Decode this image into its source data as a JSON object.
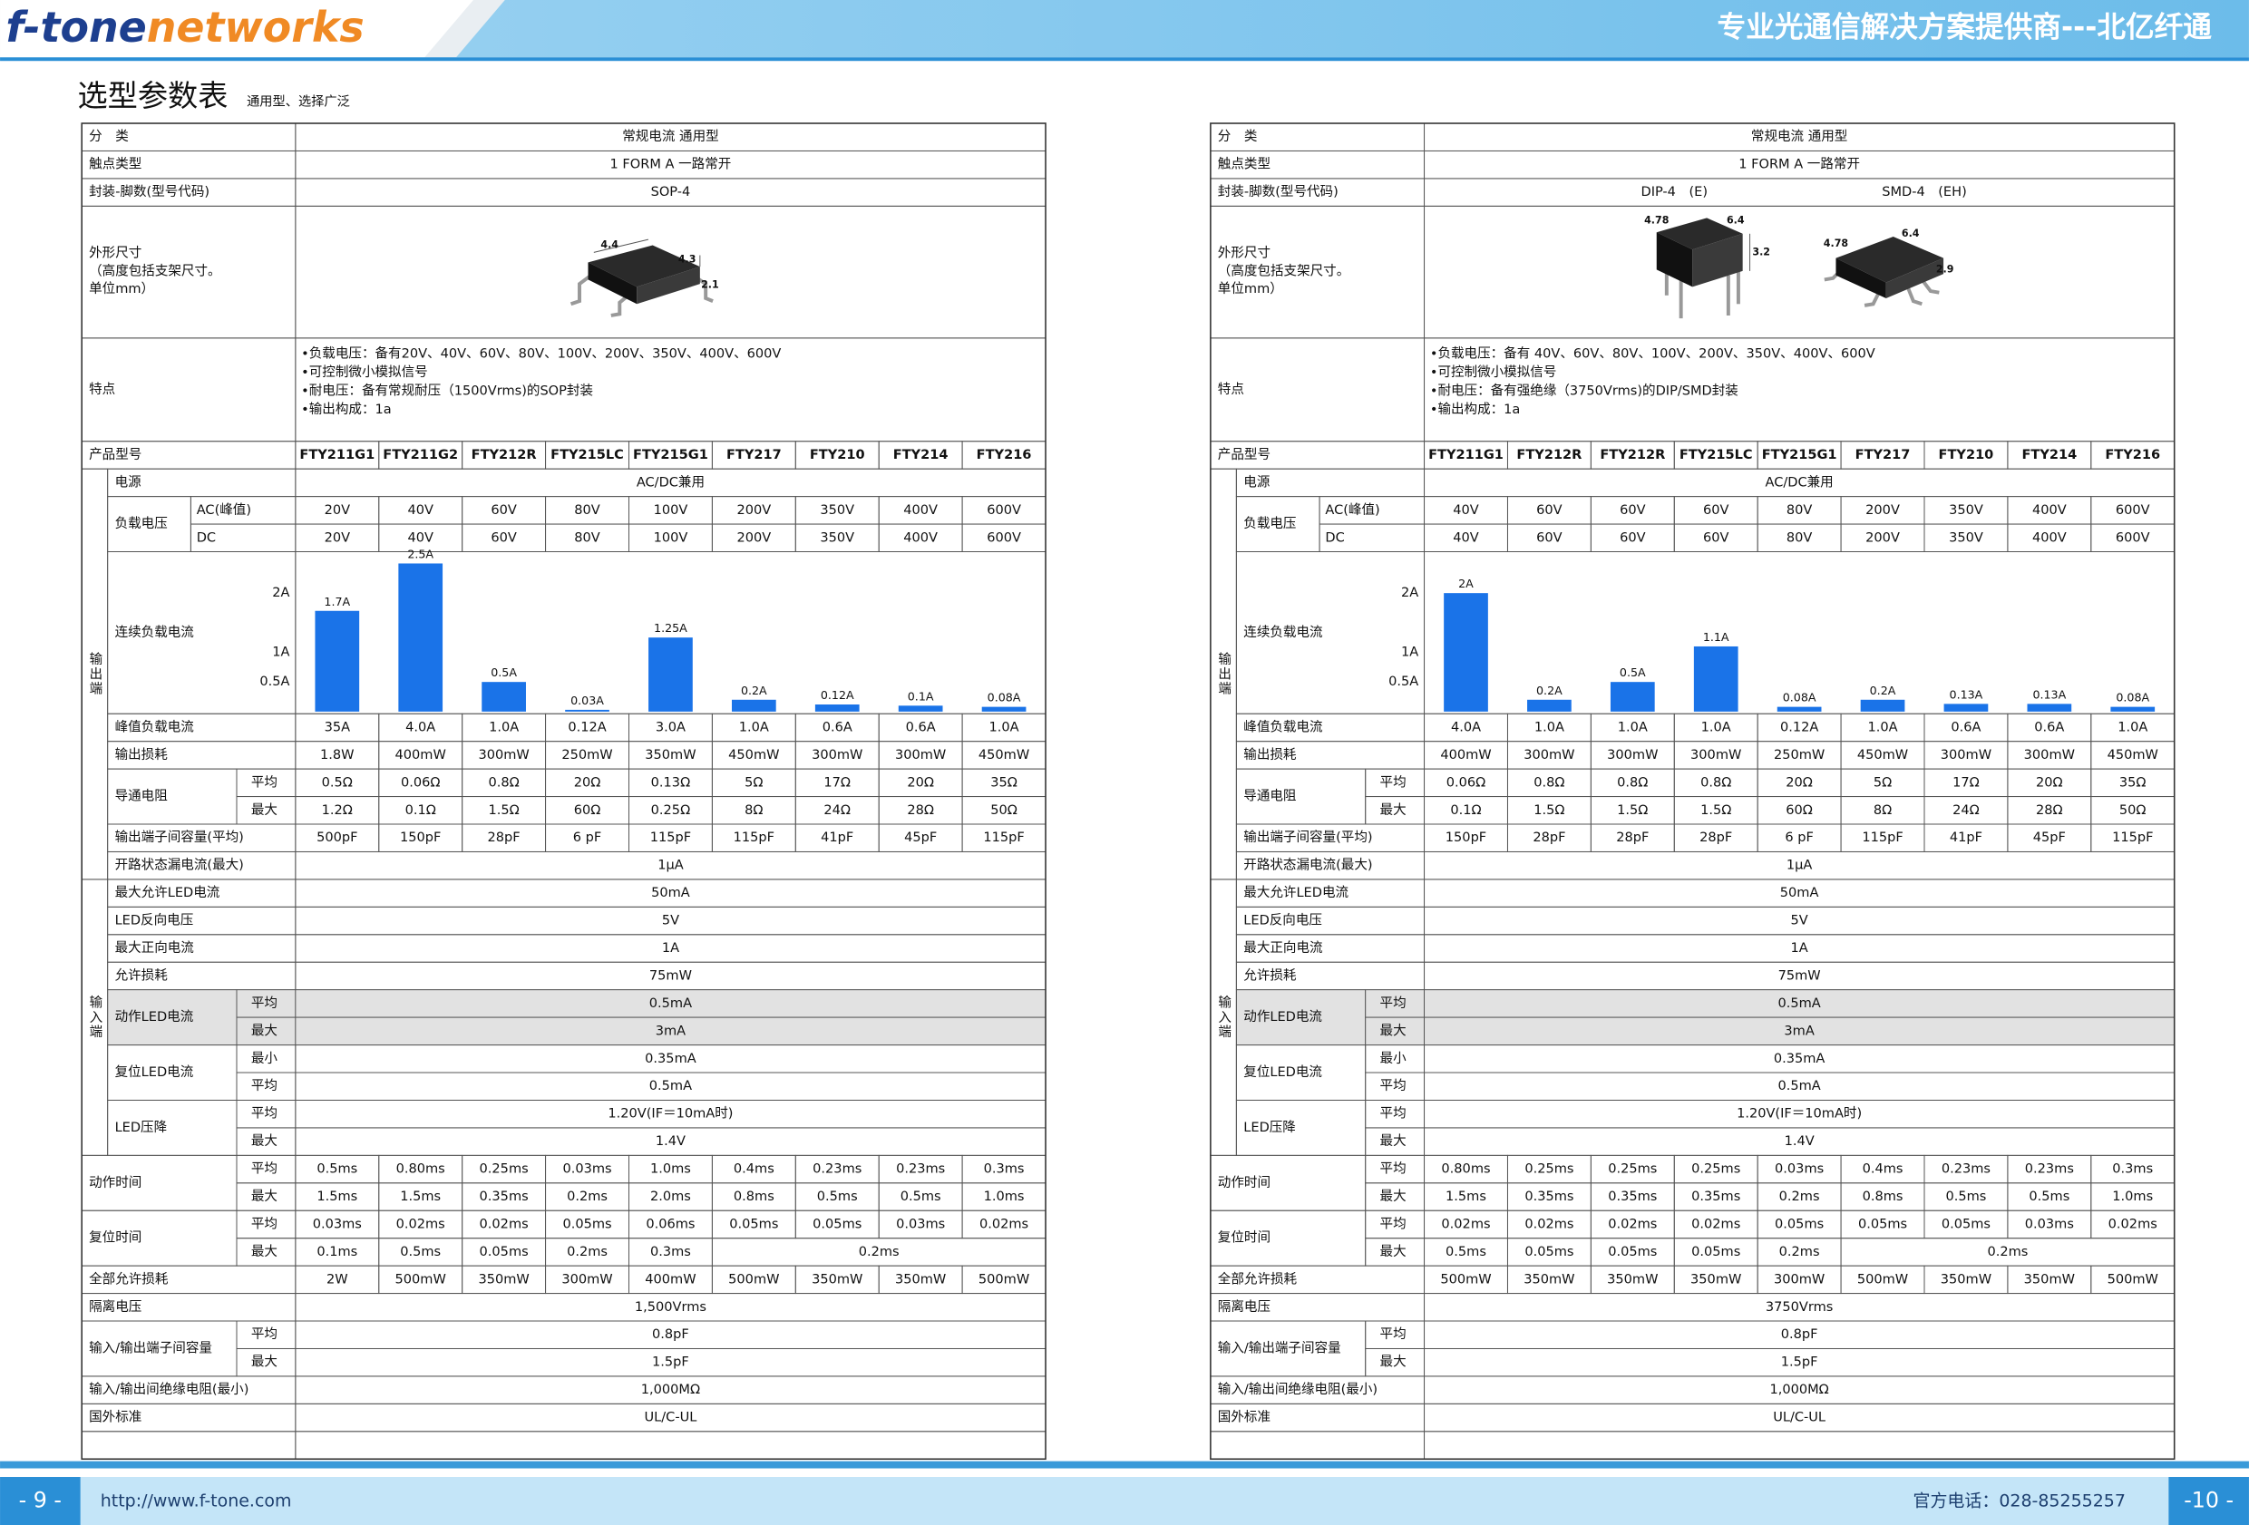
{
  "header": {
    "brand": [
      "f-tone",
      "networks"
    ],
    "slogan": "专业光通信解决方案提供商---北亿纤通"
  },
  "title": "选型参数表",
  "subtitle": "通用型、选择广泛",
  "tables": [
    {
      "category": {
        "label": "分　类",
        "value": "常规电流 通用型"
      },
      "contact": {
        "label": "触点类型",
        "value": "1 FORM A  一路常开"
      },
      "package": {
        "label": "封装-脚数(型号代码)",
        "values": [
          "SOP-4"
        ]
      },
      "dimensions": {
        "label": [
          "外形尺寸",
          "（高度包括支架尺寸。",
          "单位mm）"
        ],
        "figure_labels": [
          "4.4",
          "4.3",
          "2.1"
        ]
      },
      "features": {
        "label": "特点",
        "lines": [
          "•负载电压：备有20V、40V、60V、80V、100V、200V、350V、400V、600V",
          "•可控制微小模拟信号",
          "•耐电压：备有常规耐压（1500Vrms)的SOP封装",
          "•输出构成：1a"
        ]
      },
      "models": {
        "label": "产品型号",
        "values": [
          "FTY211G1",
          "FTY211G2",
          "FTY212R",
          "FTY215LC",
          "FTY215G1",
          "FTY217",
          "FTY210",
          "FTY214",
          "FTY216"
        ]
      },
      "output": {
        "label": "输出端",
        "rows": [
          {
            "label": "电源",
            "value": "AC/DC兼用"
          },
          {
            "label": "负载电压",
            "subrows": [
              {
                "label": "AC(峰值)",
                "values": [
                  "20V",
                  "40V",
                  "60V",
                  "80V",
                  "100V",
                  "200V",
                  "350V",
                  "400V",
                  "600V"
                ]
              },
              {
                "label": "DC",
                "values": [
                  "20V",
                  "40V",
                  "60V",
                  "80V",
                  "100V",
                  "200V",
                  "350V",
                  "400V",
                  "600V"
                ]
              }
            ]
          },
          {
            "label": "连续负载电流",
            "chart_data": {
              "type": "bar",
              "color": "#1a73e8",
              "values": [
                1.7,
                2.5,
                0.5,
                0.03,
                1.25,
                0.2,
                0.12,
                0.1,
                0.08
              ],
              "value_labels": [
                "1.7A",
                "2.5A",
                "0.5A",
                "0.03A",
                "1.25A",
                "0.2A",
                "0.12A",
                "0.1A",
                "0.08A"
              ],
              "ylim": [
                0,
                2.65
              ],
              "yticks": [
                {
                  "value": 2,
                  "label": "2A"
                },
                {
                  "value": 1,
                  "label": "1A"
                },
                {
                  "value": 0.5,
                  "label": "0.5A"
                }
              ]
            }
          },
          {
            "label": "峰值负载电流",
            "values": [
              "35A",
              "4.0A",
              "1.0A",
              "0.12A",
              "3.0A",
              "1.0A",
              "0.6A",
              "0.6A",
              "1.0A"
            ]
          },
          {
            "label": "输出损耗",
            "values": [
              "1.8W",
              "400mW",
              "300mW",
              "250mW",
              "350mW",
              "450mW",
              "300mW",
              "300mW",
              "450mW"
            ]
          },
          {
            "label": "导通电阻",
            "subrows": [
              {
                "label": "平均",
                "values": [
                  "0.5Ω",
                  "0.06Ω",
                  "0.8Ω",
                  "20Ω",
                  "0.13Ω",
                  "5Ω",
                  "17Ω",
                  "20Ω",
                  "35Ω"
                ]
              },
              {
                "label": "最大",
                "values": [
                  "1.2Ω",
                  "0.1Ω",
                  "1.5Ω",
                  "60Ω",
                  "0.25Ω",
                  "8Ω",
                  "24Ω",
                  "28Ω",
                  "50Ω"
                ]
              }
            ]
          },
          {
            "label": "输出端子间容量(平均)",
            "values": [
              "500pF",
              "150pF",
              "28pF",
              "6 pF",
              "115pF",
              "115pF",
              "41pF",
              "45pF",
              "115pF"
            ]
          },
          {
            "label": "开路状态漏电流(最大)",
            "value": "1μA"
          }
        ]
      },
      "input": {
        "label": "输入端",
        "rows": [
          {
            "label": "最大允许LED电流",
            "value": "50mA"
          },
          {
            "label": "LED反向电压",
            "value": "5V"
          },
          {
            "label": "最大正向电流",
            "value": "1A"
          },
          {
            "label": "允许损耗",
            "value": "75mW"
          },
          {
            "label": "动作LED电流",
            "subrows": [
              {
                "label": "平均",
                "value": "0.5mA"
              },
              {
                "label": "最大",
                "value": "3mA"
              }
            ]
          },
          {
            "label": "复位LED电流",
            "subrows": [
              {
                "label": "最小",
                "value": "0.35mA"
              },
              {
                "label": "平均",
                "value": "0.5mA"
              }
            ]
          },
          {
            "label": "LED压降",
            "subrows": [
              {
                "label": "平均",
                "value": "1.20V(IF＝10mA时)"
              },
              {
                "label": "最大",
                "value": "1.4V"
              }
            ]
          }
        ]
      },
      "bottom": {
        "rows": [
          {
            "label": "动作时间",
            "subrows": [
              {
                "label": "平均",
                "values": [
                  "0.5ms",
                  "0.80ms",
                  "0.25ms",
                  "0.03ms",
                  "1.0ms",
                  "0.4ms",
                  "0.23ms",
                  "0.23ms",
                  "0.3ms"
                ]
              },
              {
                "label": "最大",
                "values": [
                  "1.5ms",
                  "1.5ms",
                  "0.35ms",
                  "0.2ms",
                  "2.0ms",
                  "0.8ms",
                  "0.5ms",
                  "0.5ms",
                  "1.0ms"
                ]
              }
            ]
          },
          {
            "label": "复位时间",
            "subrows": [
              {
                "label": "平均",
                "values": [
                  "0.03ms",
                  "0.02ms",
                  "0.02ms",
                  "0.05ms",
                  "0.06ms",
                  "0.05ms",
                  "0.05ms",
                  "0.03ms",
                  "0.02ms"
                ]
              },
              {
                "label": "最大",
                "values": [
                  "0.1ms",
                  "0.5ms",
                  "0.05ms",
                  "0.2ms",
                  "0.3ms"
                ],
                "value": "0.2ms"
              }
            ]
          },
          {
            "label": "全部允许损耗",
            "values": [
              "2W",
              "500mW",
              "350mW",
              "300mW",
              "400mW",
              "500mW",
              "350mW",
              "350mW",
              "500mW"
            ]
          },
          {
            "label": "隔离电压",
            "value": "1,500Vrms"
          },
          {
            "label": "输入/输出端子间容量",
            "subrows": [
              {
                "label": "平均",
                "value": "0.8pF"
              },
              {
                "label": "最大",
                "value": "1.5pF"
              }
            ]
          },
          {
            "label": "输入/输出间绝缘电阻(最小)",
            "value": "1,000MΩ"
          },
          {
            "label": "国外标准",
            "value": "UL/C-UL"
          }
        ]
      }
    },
    {
      "category": {
        "label": "分　类",
        "value": "常规电流 通用型"
      },
      "contact": {
        "label": "触点类型",
        "value": "1 FORM A  一路常开"
      },
      "package": {
        "label": "封装-脚数(型号代码)",
        "values": [
          "DIP-4　(E)",
          "SMD-4　(EH)"
        ]
      },
      "dimensions": {
        "label": [
          "外形尺寸",
          "（高度包括支架尺寸。",
          "单位mm）"
        ],
        "figure_labels": [
          "4.78",
          "6.4",
          "3.2",
          "4.78",
          "6.4",
          "2.9"
        ]
      },
      "features": {
        "label": "特点",
        "lines": [
          "•负载电压：备有 40V、60V、80V、100V、200V、350V、400V、600V",
          "•可控制微小模拟信号",
          "•耐电压：备有强绝缘（3750Vrms)的DIP/SMD封装",
          "•输出构成：1a"
        ]
      },
      "models": {
        "label": "产品型号",
        "values": [
          "FTY211G1",
          "FTY212R",
          "FTY212R",
          "FTY215LC",
          "FTY215G1",
          "FTY217",
          "FTY210",
          "FTY214",
          "FTY216"
        ]
      },
      "output": {
        "label": "输出端",
        "rows": [
          {
            "label": "电源",
            "value": "AC/DC兼用"
          },
          {
            "label": "负载电压",
            "subrows": [
              {
                "label": "AC(峰值)",
                "values": [
                  "40V",
                  "60V",
                  "60V",
                  "60V",
                  "80V",
                  "200V",
                  "350V",
                  "400V",
                  "600V"
                ]
              },
              {
                "label": "DC",
                "values": [
                  "40V",
                  "60V",
                  "60V",
                  "60V",
                  "80V",
                  "200V",
                  "350V",
                  "400V",
                  "600V"
                ]
              }
            ]
          },
          {
            "label": "连续负载电流",
            "chart_data": {
              "type": "bar",
              "color": "#1a73e8",
              "values": [
                2,
                0.2,
                0.5,
                1.1,
                0.08,
                0.2,
                0.13,
                0.13,
                0.08
              ],
              "value_labels": [
                "2A",
                "0.2A",
                "0.5A",
                "1.1A",
                "0.08A",
                "0.2A",
                "0.13A",
                "0.13A",
                "0.08A"
              ],
              "ylim": [
                0,
                2.65
              ],
              "yticks": [
                {
                  "value": 2,
                  "label": "2A"
                },
                {
                  "value": 1,
                  "label": "1A"
                },
                {
                  "value": 0.5,
                  "label": "0.5A"
                }
              ]
            }
          },
          {
            "label": "峰值负载电流",
            "values": [
              "4.0A",
              "1.0A",
              "1.0A",
              "1.0A",
              "0.12A",
              "1.0A",
              "0.6A",
              "0.6A",
              "1.0A"
            ]
          },
          {
            "label": "输出损耗",
            "values": [
              "400mW",
              "300mW",
              "300mW",
              "300mW",
              "250mW",
              "450mW",
              "300mW",
              "300mW",
              "450mW"
            ]
          },
          {
            "label": "导通电阻",
            "subrows": [
              {
                "label": "平均",
                "values": [
                  "0.06Ω",
                  "0.8Ω",
                  "0.8Ω",
                  "0.8Ω",
                  "20Ω",
                  "5Ω",
                  "17Ω",
                  "20Ω",
                  "35Ω"
                ]
              },
              {
                "label": "最大",
                "values": [
                  "0.1Ω",
                  "1.5Ω",
                  "1.5Ω",
                  "1.5Ω",
                  "60Ω",
                  "8Ω",
                  "24Ω",
                  "28Ω",
                  "50Ω"
                ]
              }
            ]
          },
          {
            "label": "输出端子间容量(平均)",
            "values": [
              "150pF",
              "28pF",
              "28pF",
              "28pF",
              "6 pF",
              "115pF",
              "41pF",
              "45pF",
              "115pF"
            ]
          },
          {
            "label": "开路状态漏电流(最大)",
            "value": "1μA"
          }
        ]
      },
      "input": {
        "label": "输入端",
        "rows": [
          {
            "label": "最大允许LED电流",
            "value": "50mA"
          },
          {
            "label": "LED反向电压",
            "value": "5V"
          },
          {
            "label": "最大正向电流",
            "value": "1A"
          },
          {
            "label": "允许损耗",
            "value": "75mW"
          },
          {
            "label": "动作LED电流",
            "subrows": [
              {
                "label": "平均",
                "value": "0.5mA"
              },
              {
                "label": "最大",
                "value": "3mA"
              }
            ]
          },
          {
            "label": "复位LED电流",
            "subrows": [
              {
                "label": "最小",
                "value": "0.35mA"
              },
              {
                "label": "平均",
                "value": "0.5mA"
              }
            ]
          },
          {
            "label": "LED压降",
            "subrows": [
              {
                "label": "平均",
                "value": "1.20V(IF＝10mA时)"
              },
              {
                "label": "最大",
                "value": "1.4V"
              }
            ]
          }
        ]
      },
      "bottom": {
        "rows": [
          {
            "label": "动作时间",
            "subrows": [
              {
                "label": "平均",
                "values": [
                  "0.80ms",
                  "0.25ms",
                  "0.25ms",
                  "0.25ms",
                  "0.03ms",
                  "0.4ms",
                  "0.23ms",
                  "0.23ms",
                  "0.3ms"
                ]
              },
              {
                "label": "最大",
                "values": [
                  "1.5ms",
                  "0.35ms",
                  "0.35ms",
                  "0.35ms",
                  "0.2ms",
                  "0.8ms",
                  "0.5ms",
                  "0.5ms",
                  "1.0ms"
                ]
              }
            ]
          },
          {
            "label": "复位时间",
            "subrows": [
              {
                "label": "平均",
                "values": [
                  "0.02ms",
                  "0.02ms",
                  "0.02ms",
                  "0.02ms",
                  "0.05ms",
                  "0.05ms",
                  "0.05ms",
                  "0.03ms",
                  "0.02ms"
                ]
              },
              {
                "label": "最大",
                "values": [
                  "0.5ms",
                  "0.05ms",
                  "0.05ms",
                  "0.05ms",
                  "0.2ms"
                ],
                "value": "0.2ms"
              }
            ]
          },
          {
            "label": "全部允许损耗",
            "values": [
              "500mW",
              "350mW",
              "350mW",
              "350mW",
              "300mW",
              "500mW",
              "350mW",
              "350mW",
              "500mW"
            ]
          },
          {
            "label": "隔离电压",
            "value": "3750Vrms"
          },
          {
            "label": "输入/输出端子间容量",
            "subrows": [
              {
                "label": "平均",
                "value": "0.8pF"
              },
              {
                "label": "最大",
                "value": "1.5pF"
              }
            ]
          },
          {
            "label": "输入/输出间绝缘电阻(最小)",
            "value": "1,000MΩ"
          },
          {
            "label": "国外标准",
            "value": "UL/C-UL"
          }
        ]
      }
    }
  ],
  "footer": {
    "page_left": "- 9 -",
    "url": "http://www.f-tone.com",
    "phone": "官方电话：028-85255257",
    "page_right": "-10 -"
  }
}
